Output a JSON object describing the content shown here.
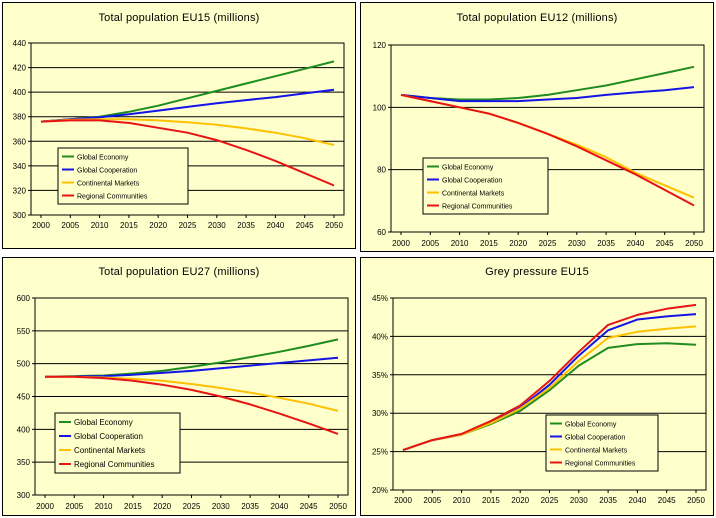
{
  "colors": {
    "panel_background": "#ffffcc",
    "plot_background": "#ffffcc",
    "grid": "#000000",
    "global_economy": "#1f8c1f",
    "global_cooperation": "#1414e6",
    "continental_markets": "#ffc000",
    "regional_communities": "#e61414"
  },
  "chart_data": [
    {
      "type": "line",
      "title": "Total population EU15 (millions)",
      "x": [
        2000,
        2005,
        2010,
        2015,
        2020,
        2025,
        2030,
        2035,
        2040,
        2045,
        2050
      ],
      "x_tick_labels": [
        "2000",
        "2005",
        "2010",
        "2015",
        "2020",
        "2025",
        "2030",
        "2035",
        "2040",
        "2045",
        "2050"
      ],
      "ylim": [
        300,
        440
      ],
      "y_ticks": [
        300,
        320,
        340,
        360,
        380,
        400,
        420,
        440
      ],
      "y_tick_labels": [
        "300",
        "320",
        "340",
        "360",
        "380",
        "400",
        "420",
        "440"
      ],
      "grid": true,
      "legend_placement": "left-center",
      "series": [
        {
          "name": "Global Economy",
          "color": "#1f8c1f",
          "values": [
            376,
            378,
            380,
            384,
            389,
            395,
            401,
            407,
            413,
            419,
            425
          ]
        },
        {
          "name": "Global Cooperation",
          "color": "#1414e6",
          "values": [
            376,
            378,
            379.5,
            382,
            385,
            388,
            391,
            393.5,
            396,
            399,
            402
          ]
        },
        {
          "name": "Continental Markets",
          "color": "#ffc000",
          "values": [
            376,
            377.5,
            378,
            378,
            377,
            375.5,
            373.5,
            370.5,
            367,
            362.5,
            357
          ]
        },
        {
          "name": "Regional Communities",
          "color": "#e61414",
          "values": [
            376,
            377,
            377,
            375,
            371,
            367,
            361,
            353,
            344,
            334,
            324
          ]
        }
      ]
    },
    {
      "type": "line",
      "title": "Total population EU12 (millions)",
      "x": [
        2000,
        2005,
        2010,
        2015,
        2020,
        2025,
        2030,
        2035,
        2040,
        2045,
        2050
      ],
      "x_tick_labels": [
        "2000",
        "2005",
        "2010",
        "2015",
        "2020",
        "2025",
        "2030",
        "2035",
        "2040",
        "2045",
        "2050"
      ],
      "ylim": [
        60,
        120
      ],
      "y_ticks": [
        60,
        80,
        100,
        120
      ],
      "y_tick_labels": [
        "60",
        "80",
        "100",
        "120"
      ],
      "grid": true,
      "legend_placement": "bottom-left",
      "series": [
        {
          "name": "Global Economy",
          "color": "#1f8c1f",
          "values": [
            104,
            103,
            102.5,
            102.5,
            103,
            104,
            105.5,
            107,
            109,
            111,
            113
          ]
        },
        {
          "name": "Global Cooperation",
          "color": "#1414e6",
          "values": [
            104,
            103,
            102,
            102,
            102,
            102.5,
            103,
            104,
            104.8,
            105.5,
            106.5
          ]
        },
        {
          "name": "Continental Markets",
          "color": "#ffc000",
          "values": [
            104,
            102,
            100,
            98,
            95,
            91.5,
            88,
            84,
            79,
            75,
            71
          ]
        },
        {
          "name": "Regional Communities",
          "color": "#e61414",
          "values": [
            104,
            102,
            100,
            98,
            95,
            91.5,
            87.5,
            83,
            78.5,
            73.5,
            68.5
          ]
        }
      ]
    },
    {
      "type": "line",
      "title": "Total population EU27 (millions)",
      "x": [
        2000,
        2005,
        2010,
        2015,
        2020,
        2025,
        2030,
        2035,
        2040,
        2045,
        2050
      ],
      "x_tick_labels": [
        "2000",
        "2005",
        "2010",
        "2015",
        "2020",
        "2025",
        "2030",
        "2035",
        "2040",
        "2045",
        "2050"
      ],
      "ylim": [
        300,
        600
      ],
      "y_ticks": [
        300,
        350,
        400,
        450,
        500,
        550,
        600
      ],
      "y_tick_labels": [
        "300",
        "350",
        "400",
        "450",
        "500",
        "550",
        "600"
      ],
      "grid": true,
      "legend_placement": "bottom-left",
      "series": [
        {
          "name": "Global Economy",
          "color": "#1f8c1f",
          "values": [
            480,
            481,
            482,
            485,
            489,
            495,
            502,
            510,
            518,
            527,
            537
          ]
        },
        {
          "name": "Global Cooperation",
          "color": "#1414e6",
          "values": [
            480,
            480.5,
            481,
            483,
            486,
            489,
            493,
            497,
            501,
            505,
            509
          ]
        },
        {
          "name": "Continental Markets",
          "color": "#ffc000",
          "values": [
            480,
            480,
            479,
            477,
            474,
            469,
            463,
            456,
            448,
            439,
            428
          ]
        },
        {
          "name": "Regional Communities",
          "color": "#e61414",
          "values": [
            480,
            480,
            478,
            474,
            468,
            460,
            450,
            438,
            424,
            409,
            393
          ]
        }
      ]
    },
    {
      "type": "line",
      "title": "Grey pressure EU15",
      "x": [
        2000,
        2005,
        2010,
        2015,
        2020,
        2025,
        2030,
        2035,
        2040,
        2045,
        2050
      ],
      "x_tick_labels": [
        "2000",
        "2005",
        "2010",
        "2015",
        "2020",
        "2025",
        "2030",
        "2035",
        "2040",
        "2045",
        "2050"
      ],
      "ylim": [
        20,
        45
      ],
      "y_ticks": [
        20,
        25,
        30,
        35,
        40,
        45
      ],
      "y_tick_labels": [
        "20%",
        "25%",
        "30%",
        "35%",
        "40%",
        "45%"
      ],
      "grid": true,
      "legend_placement": "bottom-right",
      "series": [
        {
          "name": "Global Economy",
          "color": "#1f8c1f",
          "values": [
            25.2,
            26.5,
            27.2,
            28.6,
            30.3,
            33.0,
            36.2,
            38.5,
            39.0,
            39.1,
            38.9
          ]
        },
        {
          "name": "Global Cooperation",
          "color": "#1414e6",
          "values": [
            25.2,
            26.5,
            27.2,
            28.8,
            30.7,
            33.7,
            37.5,
            40.8,
            42.2,
            42.6,
            42.9
          ]
        },
        {
          "name": "Continental Markets",
          "color": "#ffc000",
          "values": [
            25.2,
            26.5,
            27.2,
            28.7,
            30.6,
            33.3,
            36.8,
            39.8,
            40.6,
            41.0,
            41.3
          ]
        },
        {
          "name": "Regional Communities",
          "color": "#e61414",
          "values": [
            25.2,
            26.5,
            27.3,
            29.0,
            31.0,
            34.2,
            38.0,
            41.5,
            42.8,
            43.6,
            44.1
          ]
        }
      ]
    }
  ]
}
